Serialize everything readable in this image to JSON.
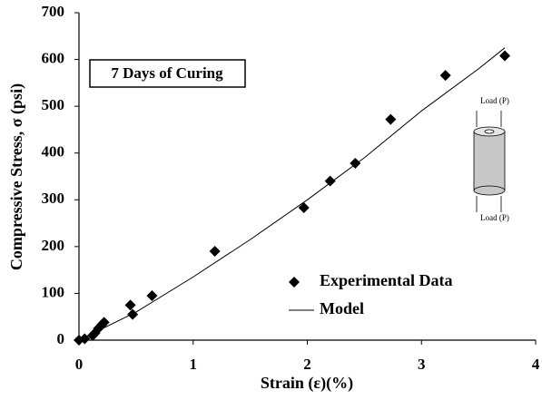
{
  "chart_data": {
    "type": "scatter",
    "x_label": "Strain (ε)(%)",
    "y_label": "Compressive Stress, σ (psi)",
    "annotation": "7 Days of Curing",
    "load_labels": [
      "Load (P)",
      "Load (P)"
    ],
    "xlim": [
      0,
      4
    ],
    "xticks": [
      0,
      1,
      2,
      3,
      4
    ],
    "ylim": [
      0,
      700
    ],
    "yticks": [
      0,
      100,
      200,
      300,
      400,
      500,
      600,
      700
    ],
    "legend": "lower right",
    "series": [
      {
        "name": "Experimental Data",
        "type": "scatter",
        "color": "#000000",
        "x": [
          0,
          0.05,
          0.12,
          0.14,
          0.17,
          0.2,
          0.22,
          0.45,
          0.47,
          0.64,
          1.19,
          1.97,
          2.2,
          2.42,
          2.73,
          3.21,
          3.73
        ],
        "values": [
          0,
          3,
          10,
          15,
          25,
          33,
          38,
          75,
          55,
          95,
          190,
          283,
          340,
          378,
          472,
          566,
          608
        ]
      },
      {
        "name": "Model",
        "type": "line",
        "color": "#000000",
        "x": [
          0,
          0.5,
          1,
          1.5,
          2,
          2.5,
          3,
          3.5,
          3.73
        ],
        "values": [
          0,
          60,
          135,
          215,
          300,
          390,
          490,
          580,
          625
        ]
      }
    ]
  }
}
